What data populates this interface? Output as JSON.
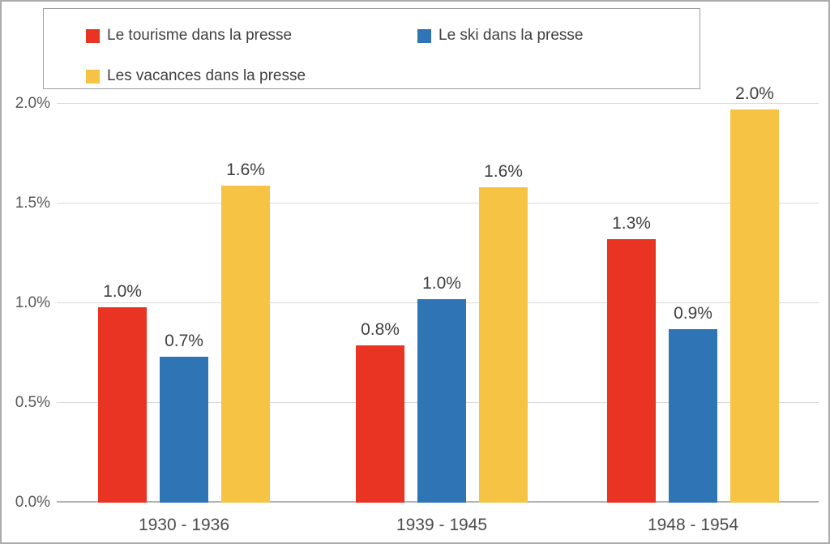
{
  "chart_data": {
    "type": "bar",
    "title": "",
    "categories": [
      "1930 - 1936",
      "1939 - 1945",
      "1948 - 1954"
    ],
    "series": [
      {
        "name": "Le tourisme dans la presse",
        "color": "#E93323",
        "values": [
          0.98,
          0.79,
          1.32
        ],
        "labels": [
          "1.0%",
          "0.8%",
          "1.3%"
        ]
      },
      {
        "name": "Le ski dans la presse",
        "color": "#2F75B6",
        "values": [
          0.73,
          1.02,
          0.87
        ],
        "labels": [
          "0.7%",
          "1.0%",
          "0.9%"
        ]
      },
      {
        "name": "Les vacances dans la presse",
        "color": "#F6C344",
        "values": [
          1.59,
          1.58,
          1.97
        ],
        "labels": [
          "1.6%",
          "1.6%",
          "2.0%"
        ]
      }
    ],
    "y_axis": {
      "ticks": [
        "0.0%",
        "0.5%",
        "1.0%",
        "1.5%",
        "2.0%"
      ],
      "min": 0.0,
      "max": 2.0,
      "unit": "%"
    },
    "legend_position": "top",
    "grid": true,
    "colors": {
      "gridline": "#D9D9D9",
      "axis_line": "#B3B3B3",
      "tick_text": "#595959",
      "value_text": "#3F3F3F",
      "legend_text": "#404040"
    }
  }
}
